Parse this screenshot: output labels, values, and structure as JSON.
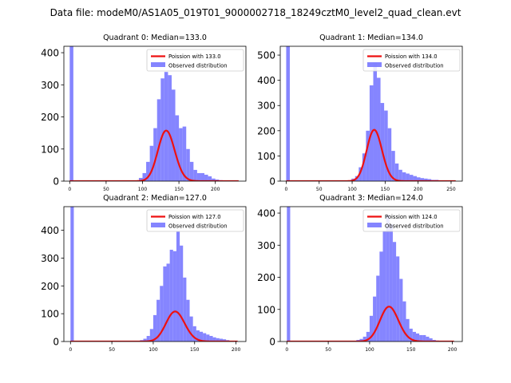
{
  "suptitle": "Data file: modeM0/AS1A05_019T01_9000002718_18249cztM0_level2_quad_clean.evt",
  "colors": {
    "observed": "#7070ff",
    "model": "#ee1111",
    "axis": "#000000"
  },
  "chart_data": [
    {
      "type": "bar",
      "title": "Quadrant 0: Median=133.0",
      "xlim": [
        -8,
        242
      ],
      "ylim": [
        0,
        420
      ],
      "xticks": [
        0,
        50,
        100,
        150,
        200
      ],
      "yticks": [
        0,
        100,
        200,
        300,
        400
      ],
      "bin_width": 5,
      "bins": [
        {
          "x": 0,
          "y": 420
        },
        {
          "x": 95,
          "y": 10
        },
        {
          "x": 100,
          "y": 25
        },
        {
          "x": 105,
          "y": 60
        },
        {
          "x": 110,
          "y": 110
        },
        {
          "x": 115,
          "y": 165
        },
        {
          "x": 120,
          "y": 255
        },
        {
          "x": 125,
          "y": 320
        },
        {
          "x": 130,
          "y": 340
        },
        {
          "x": 135,
          "y": 330
        },
        {
          "x": 140,
          "y": 285
        },
        {
          "x": 145,
          "y": 205
        },
        {
          "x": 150,
          "y": 165
        },
        {
          "x": 155,
          "y": 170
        },
        {
          "x": 160,
          "y": 100
        },
        {
          "x": 165,
          "y": 60
        },
        {
          "x": 170,
          "y": 35
        },
        {
          "x": 175,
          "y": 25
        },
        {
          "x": 180,
          "y": 25
        },
        {
          "x": 185,
          "y": 20
        },
        {
          "x": 190,
          "y": 15
        },
        {
          "x": 195,
          "y": 8
        },
        {
          "x": 200,
          "y": 5
        },
        {
          "x": 205,
          "y": 3
        }
      ],
      "poisson_mean": 133.0,
      "poisson_scale": 4550,
      "legend": {
        "model": "Poission with 133.0",
        "observed": "Observed distribution"
      }
    },
    {
      "type": "bar",
      "title": "Quadrant 1: Median=134.0",
      "xlim": [
        -9,
        267
      ],
      "ylim": [
        0,
        535
      ],
      "xticks": [
        0,
        50,
        100,
        150,
        200,
        250
      ],
      "yticks": [
        0,
        100,
        200,
        300,
        400,
        500
      ],
      "bin_width": 5.5,
      "bins": [
        {
          "x": 0,
          "y": 535
        },
        {
          "x": 99,
          "y": 10
        },
        {
          "x": 104.5,
          "y": 20
        },
        {
          "x": 110,
          "y": 55
        },
        {
          "x": 115.5,
          "y": 110
        },
        {
          "x": 121,
          "y": 200
        },
        {
          "x": 126.5,
          "y": 380
        },
        {
          "x": 132,
          "y": 470
        },
        {
          "x": 137.5,
          "y": 410
        },
        {
          "x": 143,
          "y": 310
        },
        {
          "x": 148.5,
          "y": 280
        },
        {
          "x": 154,
          "y": 210
        },
        {
          "x": 159.5,
          "y": 120
        },
        {
          "x": 165,
          "y": 70
        },
        {
          "x": 170.5,
          "y": 45
        },
        {
          "x": 176,
          "y": 35
        },
        {
          "x": 181.5,
          "y": 30
        },
        {
          "x": 187,
          "y": 25
        },
        {
          "x": 192.5,
          "y": 20
        },
        {
          "x": 198,
          "y": 15
        },
        {
          "x": 203.5,
          "y": 12
        },
        {
          "x": 209,
          "y": 10
        },
        {
          "x": 214.5,
          "y": 8
        },
        {
          "x": 220,
          "y": 5
        },
        {
          "x": 225.5,
          "y": 5
        },
        {
          "x": 231,
          "y": 3
        },
        {
          "x": 236.5,
          "y": 3
        }
      ],
      "poisson_mean": 134.0,
      "poisson_scale": 5900,
      "legend": {
        "model": "Poission with 134.0",
        "observed": "Observed distribution"
      }
    },
    {
      "type": "bar",
      "title": "Quadrant 2: Median=127.0",
      "xlim": [
        -8,
        212
      ],
      "ylim": [
        0,
        485
      ],
      "xticks": [
        0,
        50,
        100,
        150,
        200
      ],
      "yticks": [
        0,
        100,
        200,
        300,
        400
      ],
      "bin_width": 4,
      "bins": [
        {
          "x": 0,
          "y": 485
        },
        {
          "x": 84,
          "y": 5
        },
        {
          "x": 88,
          "y": 10
        },
        {
          "x": 92,
          "y": 20
        },
        {
          "x": 96,
          "y": 45
        },
        {
          "x": 100,
          "y": 95
        },
        {
          "x": 104,
          "y": 150
        },
        {
          "x": 108,
          "y": 200
        },
        {
          "x": 112,
          "y": 270
        },
        {
          "x": 116,
          "y": 280
        },
        {
          "x": 120,
          "y": 330
        },
        {
          "x": 124,
          "y": 325
        },
        {
          "x": 128,
          "y": 395
        },
        {
          "x": 132,
          "y": 345
        },
        {
          "x": 136,
          "y": 230
        },
        {
          "x": 140,
          "y": 150
        },
        {
          "x": 144,
          "y": 90
        },
        {
          "x": 148,
          "y": 55
        },
        {
          "x": 152,
          "y": 40
        },
        {
          "x": 156,
          "y": 35
        },
        {
          "x": 160,
          "y": 30
        },
        {
          "x": 164,
          "y": 25
        },
        {
          "x": 168,
          "y": 20
        },
        {
          "x": 172,
          "y": 15
        },
        {
          "x": 176,
          "y": 12
        },
        {
          "x": 180,
          "y": 10
        },
        {
          "x": 184,
          "y": 8
        },
        {
          "x": 188,
          "y": 5
        }
      ],
      "poisson_mean": 127.0,
      "poisson_scale": 3050,
      "legend": {
        "model": "Poission with 127.0",
        "observed": "Observed distribution"
      }
    },
    {
      "type": "bar",
      "title": "Quadrant 3: Median=124.0",
      "xlim": [
        -8,
        212
      ],
      "ylim": [
        0,
        420
      ],
      "xticks": [
        0,
        50,
        100,
        150,
        200
      ],
      "yticks": [
        0,
        100,
        200,
        300,
        400
      ],
      "bin_width": 4,
      "bins": [
        {
          "x": 0,
          "y": 420
        },
        {
          "x": 84,
          "y": 5
        },
        {
          "x": 88,
          "y": 8
        },
        {
          "x": 92,
          "y": 15
        },
        {
          "x": 96,
          "y": 30
        },
        {
          "x": 100,
          "y": 80
        },
        {
          "x": 104,
          "y": 140
        },
        {
          "x": 108,
          "y": 205
        },
        {
          "x": 112,
          "y": 280
        },
        {
          "x": 116,
          "y": 345
        },
        {
          "x": 120,
          "y": 395
        },
        {
          "x": 124,
          "y": 365
        },
        {
          "x": 128,
          "y": 310
        },
        {
          "x": 132,
          "y": 265
        },
        {
          "x": 136,
          "y": 195
        },
        {
          "x": 140,
          "y": 125
        },
        {
          "x": 144,
          "y": 70
        },
        {
          "x": 148,
          "y": 40
        },
        {
          "x": 152,
          "y": 30
        },
        {
          "x": 156,
          "y": 25
        },
        {
          "x": 160,
          "y": 20
        },
        {
          "x": 164,
          "y": 20
        },
        {
          "x": 168,
          "y": 15
        },
        {
          "x": 172,
          "y": 10
        },
        {
          "x": 176,
          "y": 5
        },
        {
          "x": 180,
          "y": 3
        }
      ],
      "poisson_mean": 124.0,
      "poisson_scale": 3030,
      "legend": {
        "model": "Poission with 124.0",
        "observed": "Observed distribution"
      }
    }
  ]
}
